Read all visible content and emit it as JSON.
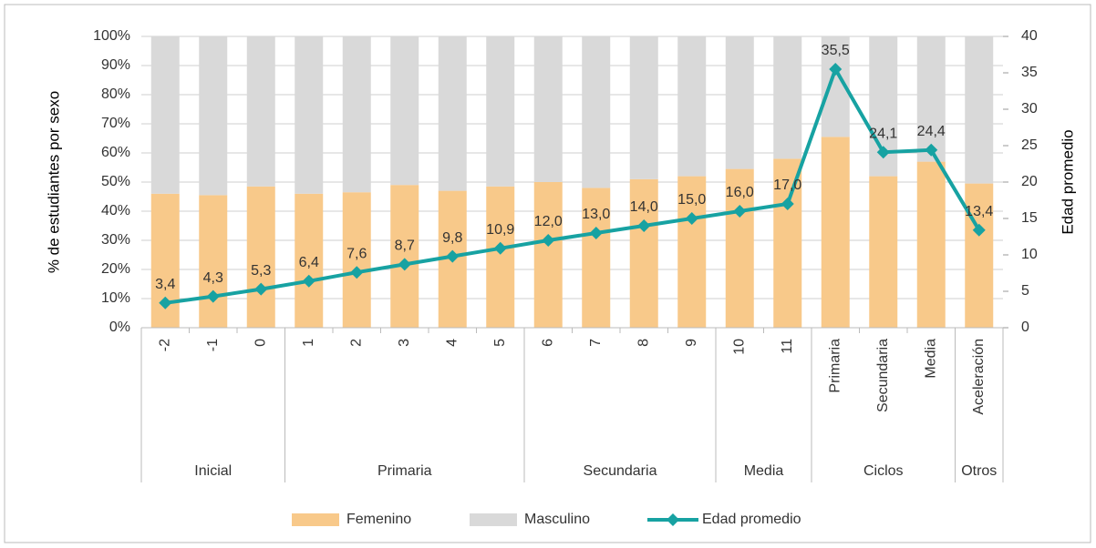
{
  "chart_data": {
    "type": "bar_line",
    "categories": [
      "-2",
      "-1",
      "0",
      "1",
      "2",
      "3",
      "4",
      "5",
      "6",
      "7",
      "8",
      "9",
      "10",
      "11",
      "Primaria",
      "Secundaria",
      "Media",
      "Aceleración"
    ],
    "groups": [
      {
        "name": "Inicial",
        "span": 3
      },
      {
        "name": "Primaria",
        "span": 5
      },
      {
        "name": "Secundaria",
        "span": 4
      },
      {
        "name": "Media",
        "span": 2
      },
      {
        "name": "Ciclos",
        "span": 3
      },
      {
        "name": "Otros",
        "span": 1
      }
    ],
    "ylabel": "% de estudiantes por sexo",
    "y2label": "Edad promedio",
    "ylim": [
      0,
      100
    ],
    "yticks": [
      {
        "value": 0,
        "label": "0%"
      },
      {
        "value": 10,
        "label": "10%"
      },
      {
        "value": 20,
        "label": "20%"
      },
      {
        "value": 30,
        "label": "30%"
      },
      {
        "value": 40,
        "label": "40%"
      },
      {
        "value": 50,
        "label": "50%"
      },
      {
        "value": 60,
        "label": "60%"
      },
      {
        "value": 70,
        "label": "70%"
      },
      {
        "value": 80,
        "label": "80%"
      },
      {
        "value": 90,
        "label": "90%"
      },
      {
        "value": 100,
        "label": "100%"
      }
    ],
    "y2lim": [
      0,
      40
    ],
    "y2ticks": [
      0,
      5,
      10,
      15,
      20,
      25,
      30,
      35,
      40
    ],
    "grid": true,
    "legend": "bottom",
    "series": [
      {
        "name": "Femenino",
        "type": "bar",
        "color": "#f8c98a",
        "values": [
          46,
          45.5,
          48.5,
          46,
          46.5,
          49,
          47,
          48.5,
          50,
          48,
          51,
          52,
          54.5,
          58,
          65.5,
          52,
          57,
          49.5
        ]
      },
      {
        "name": "Masculino",
        "type": "bar",
        "color": "#d9d9d9",
        "values": [
          54,
          54.5,
          51.5,
          54,
          53.5,
          51,
          53,
          51.5,
          50,
          52,
          49,
          48,
          45.5,
          42,
          34.5,
          48,
          43,
          50.5
        ]
      },
      {
        "name": "Edad promedio",
        "type": "line",
        "axis": "y2",
        "color": "#17a2a2",
        "values": [
          3.4,
          4.3,
          5.3,
          6.4,
          7.6,
          8.7,
          9.8,
          10.9,
          12.0,
          13.0,
          14.0,
          15.0,
          16.0,
          17.0,
          35.5,
          24.1,
          24.4,
          13.4
        ],
        "value_labels": [
          "3,4",
          "4,3",
          "5,3",
          "6,4",
          "7,6",
          "8,7",
          "9,8",
          "10,9",
          "12,0",
          "13,0",
          "14,0",
          "15,0",
          "16,0",
          "17,0",
          "35,5",
          "24,1",
          "24,4",
          "13,4"
        ]
      }
    ]
  }
}
